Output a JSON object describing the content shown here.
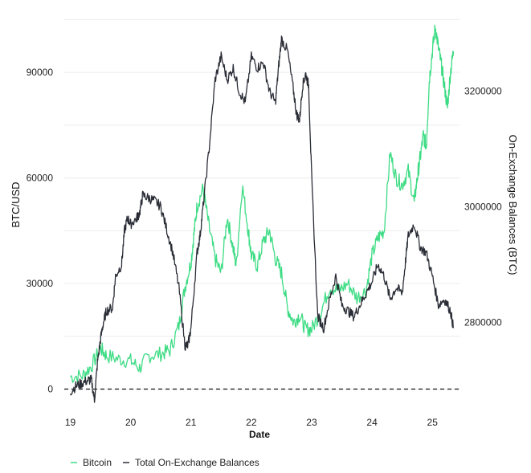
{
  "chart_data": {
    "type": "line",
    "title": "",
    "xlabel": "Date",
    "ylabel": "BTC/USD",
    "ylabel_right": "On-Exchange Balances (BTC)",
    "x_ticks": [
      "19",
      "20",
      "21",
      "22",
      "23",
      "24",
      "25"
    ],
    "y_ticks_left": [
      "0",
      "30000",
      "60000",
      "90000"
    ],
    "y_ticks_right": [
      "2800000",
      "3000000",
      "3200000"
    ],
    "ylim_left": [
      -4000,
      106000
    ],
    "ylim_right": [
      2660000,
      3330000
    ],
    "xlim": [
      18.9,
      25.45
    ],
    "grid": "horizontal",
    "legend_position": "bottom-left",
    "zero_line": "dashed",
    "series": [
      {
        "name": "Bitcoin",
        "axis": "left",
        "color": "#3ddc84",
        "x": [
          19.0,
          19.2,
          19.35,
          19.5,
          19.6,
          19.8,
          20.0,
          20.15,
          20.3,
          20.5,
          20.65,
          20.8,
          20.9,
          21.0,
          21.05,
          21.1,
          21.2,
          21.3,
          21.4,
          21.5,
          21.6,
          21.7,
          21.75,
          21.85,
          21.95,
          22.0,
          22.1,
          22.2,
          22.3,
          22.4,
          22.5,
          22.6,
          22.7,
          22.8,
          22.9,
          23.0,
          23.15,
          23.3,
          23.45,
          23.6,
          23.75,
          23.9,
          24.0,
          24.1,
          24.2,
          24.3,
          24.4,
          24.5,
          24.6,
          24.7,
          24.75,
          24.8,
          24.85,
          24.9,
          24.95,
          25.0,
          25.05,
          25.1,
          25.15,
          25.2,
          25.25,
          25.3,
          25.35
        ],
        "values": [
          3500,
          3800,
          6500,
          11500,
          9500,
          8500,
          8000,
          6000,
          9500,
          10000,
          11000,
          18000,
          29000,
          36000,
          44000,
          52000,
          57000,
          46000,
          37000,
          33000,
          49000,
          40000,
          35000,
          58000,
          45000,
          38000,
          35000,
          42000,
          45000,
          37000,
          33000,
          23000,
          19000,
          21000,
          17000,
          17000,
          22000,
          29000,
          28000,
          30000,
          26000,
          28000,
          38000,
          43000,
          45000,
          67000,
          60000,
          58000,
          62000,
          53000,
          60000,
          66000,
          72000,
          69000,
          88000,
          96000,
          103000,
          97000,
          92000,
          86000,
          80000,
          90000,
          96000
        ]
      },
      {
        "name": "Total On-Exchange Balances",
        "axis": "right",
        "color": "#2a2d36",
        "x": [
          19.0,
          19.1,
          19.2,
          19.3,
          19.35,
          19.4,
          19.45,
          19.5,
          19.55,
          19.6,
          19.7,
          19.75,
          19.85,
          19.9,
          19.95,
          20.0,
          20.1,
          20.15,
          20.2,
          20.3,
          20.4,
          20.5,
          20.6,
          20.7,
          20.8,
          20.9,
          20.95,
          21.0,
          21.1,
          21.15,
          21.2,
          21.3,
          21.4,
          21.5,
          21.6,
          21.7,
          21.8,
          21.9,
          22.0,
          22.1,
          22.2,
          22.3,
          22.4,
          22.45,
          22.5,
          22.6,
          22.7,
          22.75,
          22.8,
          22.85,
          22.9,
          22.95,
          23.0,
          23.1,
          23.2,
          23.3,
          23.4,
          23.5,
          23.6,
          23.7,
          23.8,
          23.9,
          24.0,
          24.1,
          24.2,
          24.3,
          24.4,
          24.5,
          24.55,
          24.6,
          24.7,
          24.8,
          24.9,
          25.0,
          25.1,
          25.2,
          25.3,
          25.35
        ],
        "values": [
          2680000,
          2690000,
          2695000,
          2700000,
          2700000,
          2665000,
          2730000,
          2770000,
          2800000,
          2820000,
          2825000,
          2880000,
          2900000,
          2960000,
          2980000,
          2970000,
          2980000,
          2990000,
          3020000,
          3015000,
          3010000,
          3000000,
          2960000,
          2920000,
          2860000,
          2760000,
          2760000,
          2790000,
          2920000,
          2950000,
          3000000,
          3100000,
          3220000,
          3260000,
          3220000,
          3240000,
          3200000,
          3180000,
          3260000,
          3240000,
          3250000,
          3200000,
          3180000,
          3240000,
          3290000,
          3270000,
          3200000,
          3160000,
          3150000,
          3210000,
          3230000,
          3210000,
          3050000,
          2810000,
          2790000,
          2840000,
          2880000,
          2830000,
          2820000,
          2810000,
          2830000,
          2850000,
          2870000,
          2900000,
          2880000,
          2840000,
          2860000,
          2850000,
          2900000,
          2950000,
          2970000,
          2930000,
          2920000,
          2880000,
          2830000,
          2840000,
          2820000,
          2790000
        ]
      }
    ]
  }
}
